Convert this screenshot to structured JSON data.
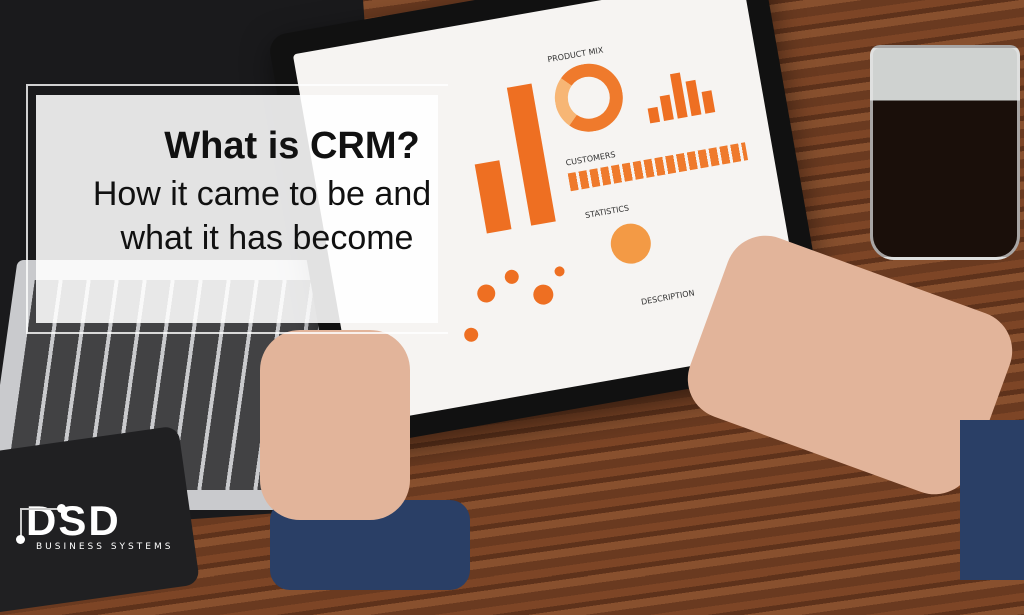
{
  "title": {
    "heading": "What is CRM?",
    "subtitle_line1": "How it came to be and",
    "subtitle_line2": "what it has become"
  },
  "tablet_screen": {
    "labels": [
      "PRODUCT MIX",
      "CUSTOMERS",
      "STATISTICS",
      "DESCRIPTION"
    ]
  },
  "logo": {
    "name": "DSD",
    "tagline": "BUSINESS SYSTEMS"
  },
  "colors": {
    "accent": "#ee6f22",
    "wood": "#6a3a20"
  }
}
